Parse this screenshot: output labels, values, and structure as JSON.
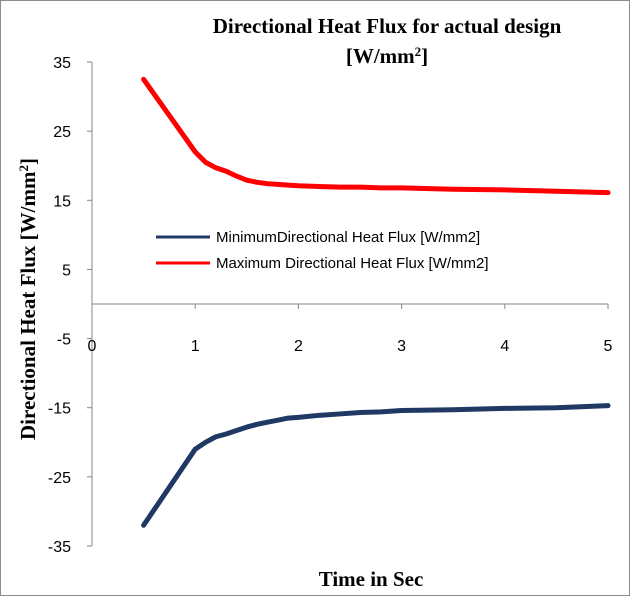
{
  "chart_data": {
    "type": "line",
    "title": {
      "line1": "Directional Heat Flux for actual design",
      "line2_main": "[W/mm",
      "line2_sup": "2",
      "line2_end": "]"
    },
    "xlabel": "Time in Sec",
    "ylabel": {
      "main": "Directional Heat Flux [W/mm",
      "sup": "2",
      "end": "]"
    },
    "xlim": [
      0,
      5
    ],
    "ylim": [
      -35,
      35
    ],
    "x_ticks": [
      "0",
      "1",
      "2",
      "3",
      "4",
      "5"
    ],
    "y_ticks": [
      "35",
      "25",
      "15",
      "5",
      "-5",
      "-15",
      "-25",
      "-35"
    ],
    "grid": false,
    "legend_position": "center",
    "series": [
      {
        "name": "MinimumDirectional Heat Flux [W/mm2]",
        "color": "#1f3864",
        "x": [
          0.5,
          1.0,
          1.1,
          1.2,
          1.3,
          1.4,
          1.5,
          1.6,
          1.7,
          1.8,
          1.9,
          2.0,
          2.2,
          2.4,
          2.6,
          2.8,
          3.0,
          3.5,
          4.0,
          4.5,
          5.0
        ],
        "y": [
          -32,
          -21,
          -20,
          -19.2,
          -18.8,
          -18.3,
          -17.8,
          -17.4,
          -17.1,
          -16.8,
          -16.5,
          -16.4,
          -16.1,
          -15.9,
          -15.7,
          -15.6,
          -15.4,
          -15.3,
          -15.1,
          -15.0,
          -14.7
        ]
      },
      {
        "name": "Maximum Directional Heat Flux [W/mm2]",
        "color": "#ff0000",
        "x": [
          0.5,
          1.0,
          1.1,
          1.2,
          1.3,
          1.4,
          1.5,
          1.6,
          1.7,
          1.8,
          1.9,
          2.0,
          2.2,
          2.4,
          2.6,
          2.8,
          3.0,
          3.5,
          4.0,
          4.5,
          5.0
        ],
        "y": [
          32.5,
          22,
          20.5,
          19.7,
          19.2,
          18.5,
          17.9,
          17.6,
          17.4,
          17.3,
          17.2,
          17.1,
          17.0,
          16.9,
          16.9,
          16.8,
          16.8,
          16.6,
          16.5,
          16.3,
          16.1
        ]
      }
    ]
  }
}
